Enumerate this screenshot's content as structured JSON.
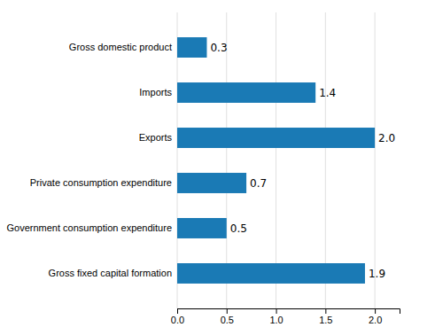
{
  "chart_data": {
    "type": "bar",
    "orientation": "horizontal",
    "categories": [
      "Gross fixed capital formation",
      "Government consumption expenditure",
      "Private consumption expenditure",
      "Exports",
      "Imports",
      "Gross domestic product"
    ],
    "values": [
      1.9,
      0.5,
      0.7,
      2.0,
      1.4,
      0.3
    ],
    "value_labels": [
      "1.9",
      "0.5",
      "0.7",
      "2.0",
      "1.4",
      "0.3"
    ],
    "data_labels": true,
    "color": "#1a7ab5",
    "xlim": [
      0,
      2.25
    ],
    "xticks": [
      {
        "value": 0.0,
        "label": "0.0"
      },
      0.5,
      {
        "value": 1.0,
        "label": "1.0"
      },
      1.5,
      {
        "value": 2.0,
        "label": "2.0"
      }
    ],
    "grid": true
  }
}
